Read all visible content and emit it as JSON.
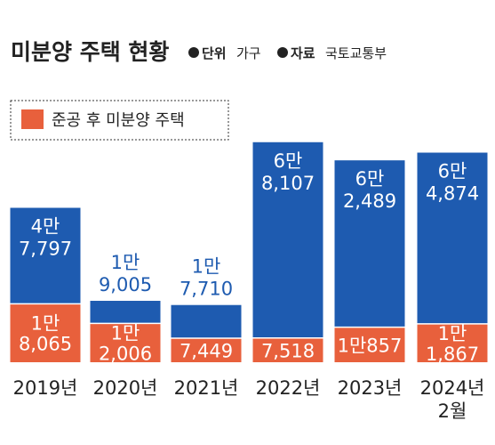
{
  "title": "미분양 주택 현황",
  "unit_key": "단위",
  "unit_value": "가구",
  "source_key": "자료",
  "source_value": "국토교통부",
  "colors": {
    "total": "#1e5bb0",
    "post_completion": "#e8603c"
  },
  "chart_data": {
    "type": "bar",
    "stacked": true,
    "categories": [
      "2019년",
      "2020년",
      "2021년",
      "2022년",
      "2023년",
      "2024년 2월"
    ],
    "category_lines": [
      [
        "2019년"
      ],
      [
        "2020년"
      ],
      [
        "2021년"
      ],
      [
        "2022년"
      ],
      [
        "2023년"
      ],
      [
        "2024년",
        "2월"
      ]
    ],
    "series": [
      {
        "name": "준공 후 미분양 주택",
        "values": [
          18065,
          12006,
          7449,
          7518,
          10857,
          11867
        ],
        "labels": [
          [
            "1만",
            "8,065"
          ],
          [
            "1만",
            "2,006"
          ],
          [
            "7,449"
          ],
          [
            "7,518"
          ],
          [
            "1만857"
          ],
          [
            "1만",
            "1,867"
          ]
        ]
      },
      {
        "name": "",
        "values": [
          47797,
          19005,
          17710,
          68107,
          62489,
          64874
        ],
        "labels": [
          [
            "4만",
            "7,797"
          ],
          [
            "1만",
            "9,005"
          ],
          [
            "1만",
            "7,710"
          ],
          [
            "6만",
            "8,107"
          ],
          [
            "6만",
            "2,489"
          ],
          [
            "6만",
            "4,874"
          ]
        ]
      }
    ],
    "legend": {
      "position": "top-left",
      "entries": [
        "준공 후 미분양 주택"
      ]
    },
    "grid": false
  }
}
